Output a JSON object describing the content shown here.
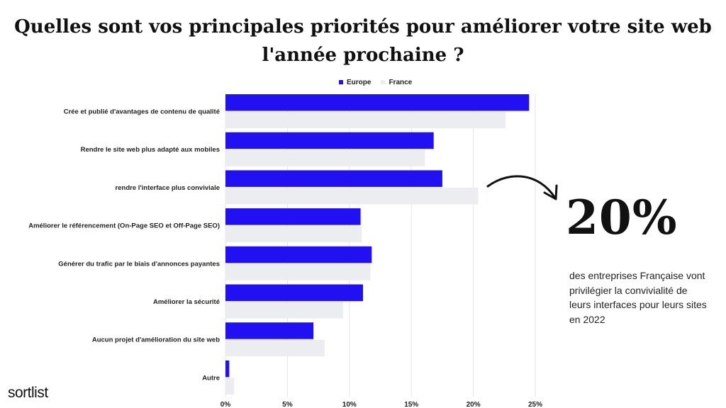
{
  "title_line1": "Quelles sont vos principales priorités pour améliorer votre site web",
  "title_line2": "l'année prochaine ?",
  "callout": {
    "value": "20%",
    "text": "des entreprises Française vont privilégier la convivialité de leurs interfaces pour leurs sites en 2022"
  },
  "logo": "sortlist",
  "chart_data": {
    "type": "bar",
    "orientation": "horizontal",
    "title": "Quelles sont vos principales priorités pour améliorer votre site web l'année prochaine ?",
    "categories": [
      "Crée et publié d'avantages de contenu de qualité",
      "Rendre le site web plus adapté aux mobiles",
      "rendre l'interface plus conviviale",
      "Améliorer le référencement (On-Page SEO et Off-Page SEO)",
      "Générer du trafic par le biais d'annonces payantes",
      "Améliorer la sécurité",
      "Aucun projet d'amélioration du site web",
      "Autre"
    ],
    "series": [
      {
        "name": "Europe",
        "color": "#2110f2",
        "values": [
          24.5,
          16.8,
          17.5,
          10.9,
          11.8,
          11.1,
          7.1,
          0.3
        ]
      },
      {
        "name": "France",
        "color": "#ecedf1",
        "values": [
          22.6,
          16.1,
          20.4,
          11.0,
          11.7,
          9.5,
          8.0,
          0.7
        ]
      }
    ],
    "xlim": [
      0,
      25
    ],
    "xticks": [
      "0%",
      "5%",
      "10%",
      "15%",
      "20%",
      "25%"
    ],
    "legend": "top-center",
    "grid": true
  }
}
